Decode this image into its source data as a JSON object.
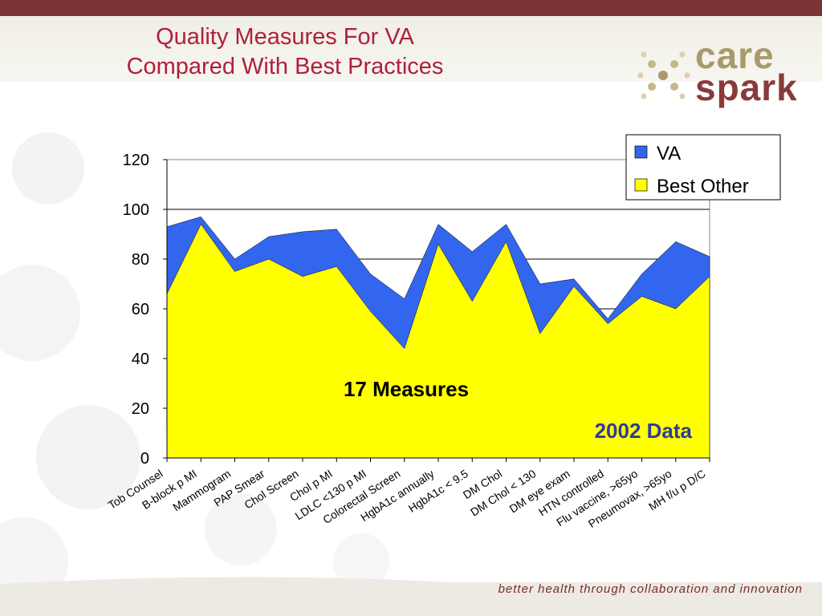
{
  "slide": {
    "title_line1": "Quality Measures For VA",
    "title_line2": "Compared With Best Practices",
    "tagline": "better health through collaboration and innovation"
  },
  "logo": {
    "word1": "care",
    "word2": "spark"
  },
  "colors": {
    "title": "#b0203a",
    "va_series": "#3366ee",
    "best_other_series": "#ffff00",
    "data_year_label": "#2e3a9a",
    "top_bar": "#7a3434"
  },
  "chart_data": {
    "type": "area",
    "categories": [
      "Tob Counsel",
      "B-block p MI",
      "Mammogram",
      "PAP Smear",
      "Chol Screen",
      "Chol p MI",
      "LDLC <130 p MI",
      "Colorectal Screen",
      "HgbA1c annually",
      "HgbA1c < 9.5",
      "DM Chol",
      "DM Chol < 130",
      "DM eye exam",
      "HTN controlled",
      "Flu vaccine, >65yo",
      "Pneumovax, >65yo",
      "MH f/u p D/C"
    ],
    "series": [
      {
        "name": "VA",
        "values": [
          93,
          97,
          80,
          89,
          91,
          92,
          74,
          64,
          94,
          83,
          94,
          70,
          72,
          56,
          74,
          87,
          81
        ]
      },
      {
        "name": "Best Other",
        "values": [
          66,
          94,
          75,
          80,
          73,
          77,
          59,
          44,
          86,
          63,
          87,
          50,
          69,
          54,
          65,
          60,
          73
        ]
      }
    ],
    "ylim": [
      0,
      120
    ],
    "yticks": [
      0,
      20,
      40,
      60,
      80,
      100,
      120
    ],
    "grid": true,
    "legend": "top-right",
    "annotations": [
      "17 Measures",
      "2002 Data"
    ]
  }
}
